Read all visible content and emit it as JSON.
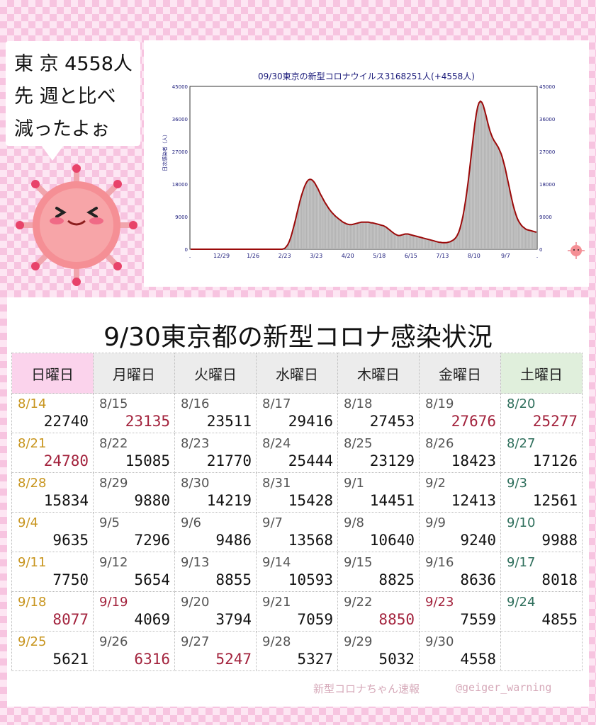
{
  "speech_bubble": {
    "line1": "東 京 4558人",
    "line2": "先 週と比べ",
    "line3": "減ったよぉ"
  },
  "colors": {
    "sunday_header": "#fbd3ec",
    "weekday_header": "#ececec",
    "saturday_header": "#e0efdc",
    "sunday_date": "#c8951e",
    "saturday_date": "#2f6f5c",
    "up_red": "#a3233d",
    "bar_gray": "#b4b4b4",
    "avg_line": "#9b0a0a"
  },
  "chart_data": {
    "type": "bar",
    "title": "09/30東京の新型コロナウイルス3168251人(+4558人)",
    "ylabel": "日次感染者（人）",
    "ylim": [
      0,
      45000
    ],
    "yticks": [
      "0",
      "9000",
      "18000",
      "27000",
      "36000",
      "45000"
    ],
    "xticks": [
      ".",
      "12/29",
      "1/26",
      "2/23",
      "3/23",
      "4/20",
      "5/18",
      "6/15",
      "7/13",
      "8/10",
      "9/7",
      "."
    ],
    "grid": false,
    "series": [
      {
        "name": "",
        "kind": "bar",
        "values": [
          0,
          0,
          0,
          0,
          0,
          0,
          0,
          0,
          0,
          0,
          0,
          0,
          0,
          0,
          0,
          0,
          0,
          0,
          0,
          0,
          0,
          0,
          0,
          0,
          0,
          0,
          0,
          0,
          0,
          0,
          0,
          0,
          0,
          0,
          0,
          0,
          0,
          0,
          0,
          0,
          0,
          0,
          0,
          0,
          0,
          0,
          0,
          0,
          0,
          0,
          0,
          0,
          0,
          0,
          0,
          0,
          0,
          0,
          0,
          0,
          0,
          0,
          0,
          0,
          0,
          0,
          0,
          0,
          100,
          300,
          700,
          1200,
          2000,
          3000,
          4200,
          5600,
          7100,
          8600,
          10200,
          11800,
          13300,
          14700,
          15900,
          17000,
          17900,
          18600,
          19100,
          19300,
          19300,
          19100,
          18700,
          18200,
          17500,
          16800,
          16000,
          15200,
          14500,
          13800,
          13100,
          12500,
          11900,
          11300,
          10800,
          10300,
          9900,
          9500,
          9100,
          8800,
          8500,
          8200,
          7900,
          7600,
          7400,
          7200,
          7000,
          6900,
          6800,
          6800,
          6800,
          6900,
          7000,
          7100,
          7200,
          7300,
          7400,
          7500,
          7500,
          7500,
          7500,
          7500,
          7500,
          7400,
          7300,
          7300,
          7200,
          7100,
          7000,
          6900,
          6800,
          6700,
          6600,
          6500,
          6300,
          6100,
          5800,
          5500,
          5200,
          4900,
          4600,
          4300,
          4100,
          3900,
          3800,
          3800,
          3900,
          4000,
          4100,
          4200,
          4200,
          4200,
          4100,
          4000,
          3900,
          3800,
          3700,
          3600,
          3500,
          3400,
          3300,
          3200,
          3100,
          3000,
          2900,
          2800,
          2700,
          2600,
          2500,
          2400,
          2300,
          2200,
          2100,
          2000,
          1900,
          1900,
          1800,
          1800,
          1800,
          1800,
          1900,
          2000,
          2100,
          2300,
          2500,
          2800,
          3200,
          3800,
          4600,
          5700,
          7100,
          8800,
          10800,
          13100,
          15700,
          18600,
          21800,
          25100,
          28500,
          31800,
          34900,
          37500,
          39400,
          40500,
          40900,
          40600,
          39800,
          38500,
          37000,
          35500,
          34000,
          32700,
          31600,
          30700,
          30000,
          29400,
          28800,
          28200,
          27400,
          26500,
          25400,
          24000,
          22500,
          20800,
          19000,
          17200,
          15400,
          13700,
          12100,
          10700,
          9500,
          8500,
          7700,
          7100,
          6600,
          6200,
          5900,
          5600,
          5400,
          5300,
          5200,
          5100,
          5000,
          4900,
          4800,
          4700
        ]
      },
      {
        "name": "",
        "kind": "line",
        "values": [
          0,
          0,
          0,
          0,
          0,
          0,
          0,
          0,
          0,
          0,
          0,
          0,
          0,
          0,
          0,
          0,
          0,
          0,
          0,
          0,
          0,
          0,
          0,
          0,
          0,
          0,
          0,
          0,
          0,
          0,
          0,
          0,
          0,
          0,
          0,
          0,
          0,
          0,
          0,
          0,
          0,
          0,
          0,
          0,
          0,
          0,
          0,
          0,
          0,
          0,
          0,
          0,
          0,
          0,
          0,
          0,
          0,
          0,
          0,
          0,
          0,
          0,
          0,
          0,
          0,
          0,
          0,
          0,
          100,
          300,
          700,
          1200,
          2000,
          3000,
          4200,
          5600,
          7100,
          8600,
          10200,
          11800,
          13300,
          14700,
          15900,
          17000,
          17900,
          18600,
          19100,
          19300,
          19300,
          19100,
          18700,
          18200,
          17500,
          16800,
          16000,
          15200,
          14500,
          13800,
          13100,
          12500,
          11900,
          11300,
          10800,
          10300,
          9900,
          9500,
          9100,
          8800,
          8500,
          8200,
          7900,
          7600,
          7400,
          7200,
          7000,
          6900,
          6800,
          6800,
          6800,
          6900,
          7000,
          7100,
          7200,
          7300,
          7400,
          7500,
          7500,
          7500,
          7500,
          7500,
          7500,
          7400,
          7300,
          7300,
          7200,
          7100,
          7000,
          6900,
          6800,
          6700,
          6600,
          6500,
          6300,
          6100,
          5800,
          5500,
          5200,
          4900,
          4600,
          4300,
          4100,
          3900,
          3800,
          3800,
          3900,
          4000,
          4100,
          4200,
          4200,
          4200,
          4100,
          4000,
          3900,
          3800,
          3700,
          3600,
          3500,
          3400,
          3300,
          3200,
          3100,
          3000,
          2900,
          2800,
          2700,
          2600,
          2500,
          2400,
          2300,
          2200,
          2100,
          2000,
          1900,
          1900,
          1800,
          1800,
          1800,
          1800,
          1900,
          2000,
          2100,
          2300,
          2500,
          2800,
          3200,
          3800,
          4600,
          5700,
          7100,
          8800,
          10800,
          13100,
          15700,
          18600,
          21800,
          25100,
          28500,
          31800,
          34900,
          37500,
          39400,
          40500,
          40900,
          40600,
          39800,
          38500,
          37000,
          35500,
          34000,
          32700,
          31600,
          30700,
          30000,
          29400,
          28800,
          28200,
          27400,
          26500,
          25400,
          24000,
          22500,
          20800,
          19000,
          17200,
          15400,
          13700,
          12100,
          10700,
          9500,
          8500,
          7700,
          7100,
          6600,
          6200,
          5900,
          5600,
          5400,
          5300,
          5200,
          5100,
          5000,
          4900,
          4800,
          4700
        ]
      }
    ]
  },
  "table": {
    "title": "9/30東京都の新型コロナ感染状況",
    "headers": [
      "日曜日",
      "月曜日",
      "火曜日",
      "水曜日",
      "木曜日",
      "金曜日",
      "土曜日"
    ],
    "rows": [
      [
        {
          "date": "8/14",
          "value": "22740",
          "up": false
        },
        {
          "date": "8/15",
          "value": "23135",
          "up": true
        },
        {
          "date": "8/16",
          "value": "23511",
          "up": false
        },
        {
          "date": "8/17",
          "value": "29416",
          "up": false
        },
        {
          "date": "8/18",
          "value": "27453",
          "up": false
        },
        {
          "date": "8/19",
          "value": "27676",
          "up": true
        },
        {
          "date": "8/20",
          "value": "25277",
          "up": true
        }
      ],
      [
        {
          "date": "8/21",
          "value": "24780",
          "up": true
        },
        {
          "date": "8/22",
          "value": "15085",
          "up": false
        },
        {
          "date": "8/23",
          "value": "21770",
          "up": false
        },
        {
          "date": "8/24",
          "value": "25444",
          "up": false
        },
        {
          "date": "8/25",
          "value": "23129",
          "up": false
        },
        {
          "date": "8/26",
          "value": "18423",
          "up": false
        },
        {
          "date": "8/27",
          "value": "17126",
          "up": false
        }
      ],
      [
        {
          "date": "8/28",
          "value": "15834",
          "up": false
        },
        {
          "date": "8/29",
          "value": "9880",
          "up": false
        },
        {
          "date": "8/30",
          "value": "14219",
          "up": false
        },
        {
          "date": "8/31",
          "value": "15428",
          "up": false
        },
        {
          "date": "9/1",
          "value": "14451",
          "up": false
        },
        {
          "date": "9/2",
          "value": "12413",
          "up": false
        },
        {
          "date": "9/3",
          "value": "12561",
          "up": false
        }
      ],
      [
        {
          "date": "9/4",
          "value": "9635",
          "up": false
        },
        {
          "date": "9/5",
          "value": "7296",
          "up": false
        },
        {
          "date": "9/6",
          "value": "9486",
          "up": false
        },
        {
          "date": "9/7",
          "value": "13568",
          "up": false
        },
        {
          "date": "9/8",
          "value": "10640",
          "up": false
        },
        {
          "date": "9/9",
          "value": "9240",
          "up": false
        },
        {
          "date": "9/10",
          "value": "9988",
          "up": false
        }
      ],
      [
        {
          "date": "9/11",
          "value": "7750",
          "up": false
        },
        {
          "date": "9/12",
          "value": "5654",
          "up": false
        },
        {
          "date": "9/13",
          "value": "8855",
          "up": false
        },
        {
          "date": "9/14",
          "value": "10593",
          "up": false
        },
        {
          "date": "9/15",
          "value": "8825",
          "up": false
        },
        {
          "date": "9/16",
          "value": "8636",
          "up": false
        },
        {
          "date": "9/17",
          "value": "8018",
          "up": false
        }
      ],
      [
        {
          "date": "9/18",
          "value": "8077",
          "up": true,
          "date_red": false
        },
        {
          "date": "9/19",
          "value": "4069",
          "up": false,
          "date_red": true
        },
        {
          "date": "9/20",
          "value": "3794",
          "up": false
        },
        {
          "date": "9/21",
          "value": "7059",
          "up": false
        },
        {
          "date": "9/22",
          "value": "8850",
          "up": true
        },
        {
          "date": "9/23",
          "value": "7559",
          "up": false,
          "date_red": true
        },
        {
          "date": "9/24",
          "value": "4855",
          "up": false
        }
      ],
      [
        {
          "date": "9/25",
          "value": "5621",
          "up": false
        },
        {
          "date": "9/26",
          "value": "6316",
          "up": true
        },
        {
          "date": "9/27",
          "value": "5247",
          "up": true
        },
        {
          "date": "9/28",
          "value": "5327",
          "up": false
        },
        {
          "date": "9/29",
          "value": "5032",
          "up": false
        },
        {
          "date": "9/30",
          "value": "4558",
          "up": false
        },
        {
          "date": "",
          "value": "",
          "up": false
        }
      ]
    ]
  },
  "footer": {
    "brand": "新型コロナちゃん速報",
    "handle": "@geiger_warning"
  }
}
